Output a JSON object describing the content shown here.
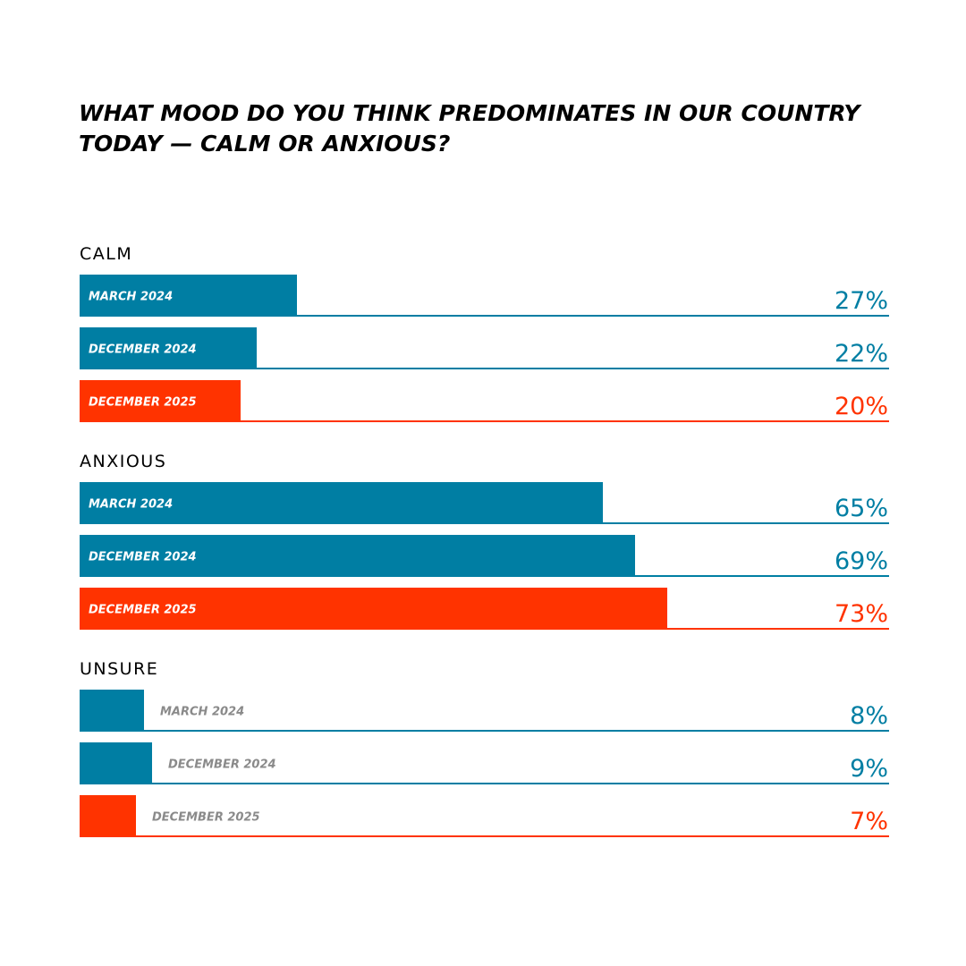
{
  "colors": {
    "previous": "#007ea3",
    "latest": "#ff3300"
  },
  "chart_data": {
    "type": "bar",
    "orientation": "horizontal",
    "title": "WHAT MOOD DO YOU THINK PREDOMINATES IN OUR COUNTRY TODAY — CALM OR ANXIOUS?",
    "xlim": [
      0,
      100
    ],
    "unit": "%",
    "groups": [
      {
        "name": "CALM",
        "bars": [
          {
            "period": "MARCH 2024",
            "value": 27,
            "label": "27%",
            "highlight": false
          },
          {
            "period": "DECEMBER  2024",
            "value": 22,
            "label": "22%",
            "highlight": false
          },
          {
            "period": "DECEMBER  2025",
            "value": 20,
            "label": "20%",
            "highlight": true
          }
        ]
      },
      {
        "name": "ANXIOUS",
        "bars": [
          {
            "period": "MARCH 2024",
            "value": 65,
            "label": "65%",
            "highlight": false
          },
          {
            "period": "DECEMBER  2024",
            "value": 69,
            "label": "69%",
            "highlight": false
          },
          {
            "period": "DECEMBER  2025",
            "value": 73,
            "label": "73%",
            "highlight": true
          }
        ]
      },
      {
        "name": "UNSURE",
        "bars": [
          {
            "period": "MARCH 2024",
            "value": 8,
            "label": "8%",
            "highlight": false
          },
          {
            "period": "DECEMBER  2024",
            "value": 9,
            "label": "9%",
            "highlight": false
          },
          {
            "period": "DECEMBER  2025",
            "value": 7,
            "label": "7%",
            "highlight": true
          }
        ]
      }
    ]
  }
}
